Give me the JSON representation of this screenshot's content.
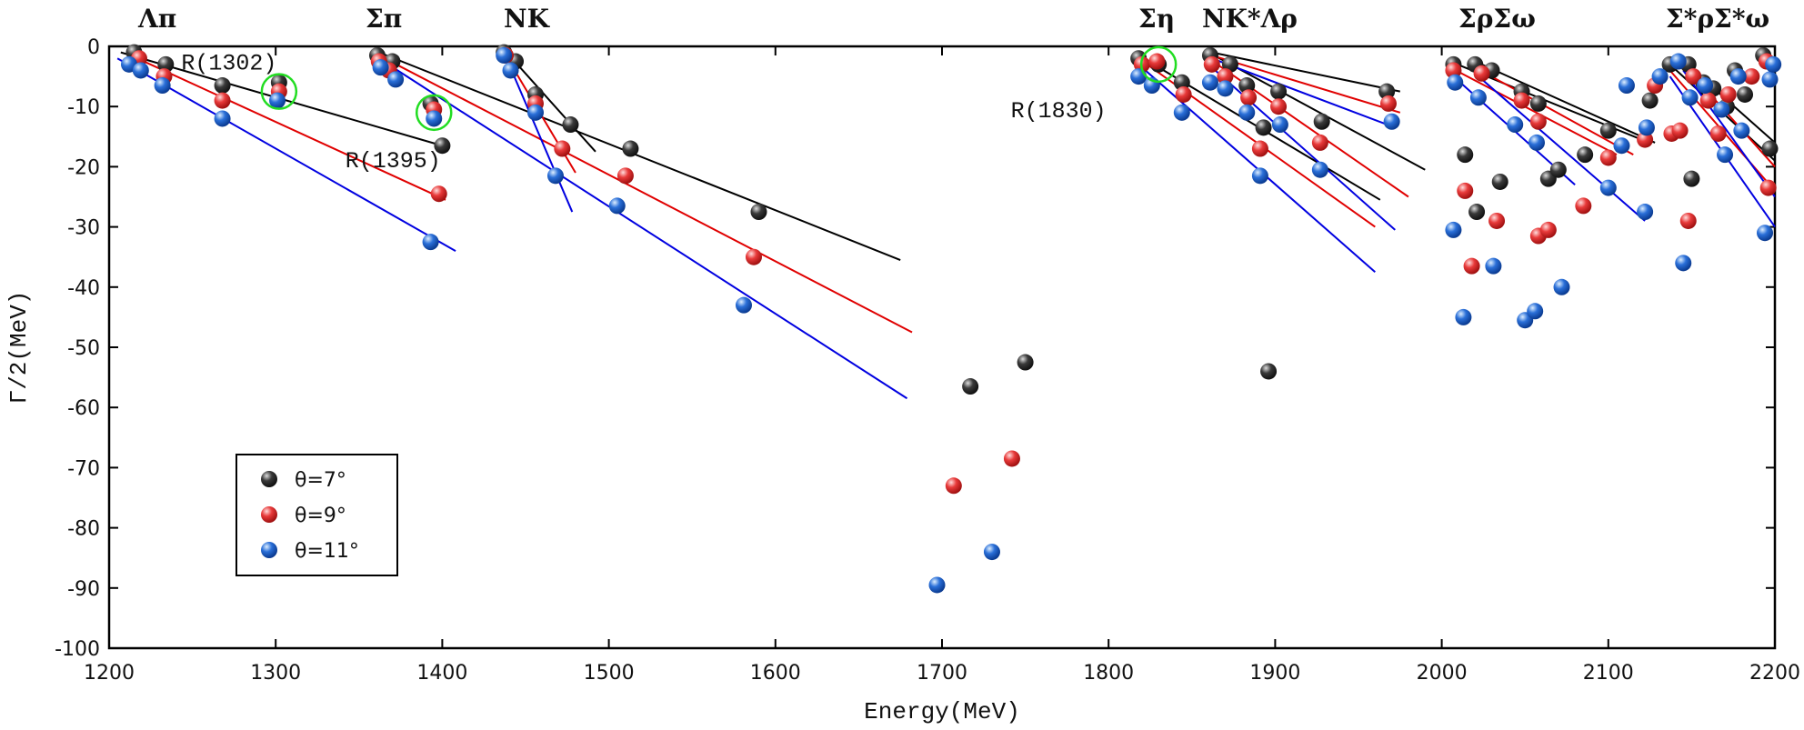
{
  "chart_data": {
    "type": "scatter",
    "xlabel": "Energy(MeV)",
    "ylabel": "Γ/2(MeV)",
    "xlim": [
      1200,
      2200
    ],
    "xticks": [
      1200,
      1300,
      1400,
      1500,
      1600,
      1700,
      1800,
      1900,
      2000,
      2100,
      2200
    ],
    "ylim": [
      -100,
      0
    ],
    "yticks": [
      -100,
      -90,
      -80,
      -70,
      -60,
      -50,
      -40,
      -30,
      -20,
      -10,
      0
    ],
    "legend": "lower left",
    "series": [
      {
        "name": "θ=7°",
        "color": "#3a3a3a",
        "line_color": "#000000",
        "x": [
          1215,
          1234,
          1268,
          1302,
          1361,
          1370,
          1393,
          1400,
          1437,
          1444,
          1456,
          1477,
          1513,
          1590,
          1717,
          1750,
          1818,
          1830,
          1844,
          1861,
          1873,
          1883,
          1893,
          1902,
          1896,
          1928,
          1967,
          2007,
          2014,
          2020,
          2021,
          2030,
          2035,
          2048,
          2058,
          2064,
          2070,
          2086,
          2100,
          2125,
          2137,
          2148,
          2150,
          2157,
          2163,
          2171,
          2176,
          2182,
          2193,
          2197
        ],
        "values": [
          -1,
          -3,
          -6.5,
          -6,
          -1.5,
          -2.5,
          -9.5,
          -16.5,
          -1,
          -2.5,
          -8,
          -13,
          -17,
          -27.5,
          -56.5,
          -52.5,
          -2,
          -3,
          -6,
          -1.5,
          -3,
          -6.5,
          -13.5,
          -7.5,
          -54,
          -12.5,
          -7.5,
          -3,
          -18,
          -3,
          -27.5,
          -4,
          -22.5,
          -7.5,
          -9.5,
          -22,
          -20.5,
          -18,
          -14,
          -9,
          -3,
          -3,
          -22,
          -6,
          -7,
          -10,
          -4,
          -8,
          -1.5,
          -17
        ],
        "lines": [
          {
            "x": [
              1207,
              1400
            ],
            "y": [
              -1,
              -16.5
            ]
          },
          {
            "x": [
              1362,
              1675
            ],
            "y": [
              -1,
              -35.5
            ]
          },
          {
            "x": [
              1437,
              1492
            ],
            "y": [
              -0.5,
              -17.5
            ]
          },
          {
            "x": [
              1818,
              1963
            ],
            "y": [
              -1.5,
              -25.5
            ]
          },
          {
            "x": [
              1860,
              1990
            ],
            "y": [
              -1,
              -20.5
            ]
          },
          {
            "x": [
              1862,
              1975
            ],
            "y": [
              -1,
              -7.5
            ]
          },
          {
            "x": [
              2005,
              2120
            ],
            "y": [
              -2.5,
              -15.5
            ]
          },
          {
            "x": [
              2020,
              2128
            ],
            "y": [
              -2.5,
              -16
            ]
          },
          {
            "x": [
              2137,
              2200
            ],
            "y": [
              -3,
              -19
            ]
          },
          {
            "x": [
              2145,
              2200
            ],
            "y": [
              -2.5,
              -16
            ]
          }
        ]
      },
      {
        "name": "θ=9°",
        "color": "#e83a3a",
        "line_color": "#e00000",
        "x": [
          1218,
          1233,
          1268,
          1302,
          1362,
          1368,
          1395,
          1398,
          1438,
          1456,
          1472,
          1510,
          1587,
          1707,
          1742,
          1820,
          1829,
          1845,
          1862,
          1870,
          1884,
          1891,
          1902,
          1927,
          1968,
          2007,
          2014,
          2018,
          2024,
          2033,
          2048,
          2058,
          2058,
          2064,
          2085,
          2100,
          2122,
          2128,
          2138,
          2143,
          2148,
          2151,
          2160,
          2166,
          2172,
          2196,
          2195,
          2186
        ],
        "values": [
          -2,
          -5,
          -9,
          -7.5,
          -2.5,
          -4,
          -10.5,
          -24.5,
          -1.5,
          -9.5,
          -17,
          -21.5,
          -35,
          -73,
          -68.5,
          -3,
          -2.5,
          -8,
          -3,
          -5,
          -8.5,
          -17,
          -10,
          -16,
          -9.5,
          -4,
          -24,
          -36.5,
          -4.5,
          -29,
          -9,
          -12.5,
          -31.5,
          -30.5,
          -26.5,
          -18.5,
          -15.5,
          -6.5,
          -14.5,
          -14,
          -29,
          -5,
          -9,
          -14.5,
          -8,
          -23.5,
          -2.5,
          -5
        ],
        "lines": [
          {
            "x": [
              1213,
              1402
            ],
            "y": [
              -1.5,
              -25.5
            ]
          },
          {
            "x": [
              1362,
              1682
            ],
            "y": [
              -1.5,
              -47.5
            ]
          },
          {
            "x": [
              1437,
              1480
            ],
            "y": [
              -1,
              -21
            ]
          },
          {
            "x": [
              1818,
              1960
            ],
            "y": [
              -2,
              -30
            ]
          },
          {
            "x": [
              1860,
              1980
            ],
            "y": [
              -2,
              -25
            ]
          },
          {
            "x": [
              1862,
              1975
            ],
            "y": [
              -1.5,
              -11
            ]
          },
          {
            "x": [
              2005,
              2105
            ],
            "y": [
              -3.5,
              -18
            ]
          },
          {
            "x": [
              2020,
              2115
            ],
            "y": [
              -3.5,
              -18
            ]
          },
          {
            "x": [
              2137,
              2200
            ],
            "y": [
              -4,
              -24
            ]
          },
          {
            "x": [
              2145,
              2200
            ],
            "y": [
              -3,
              -20
            ]
          }
        ]
      },
      {
        "name": "θ=11°",
        "color": "#2a6fd8",
        "line_color": "#0000e0",
        "x": [
          1212,
          1219,
          1232,
          1268,
          1301,
          1363,
          1372,
          1395,
          1393,
          1437,
          1441,
          1456,
          1468,
          1505,
          1581,
          1697,
          1730,
          1818,
          1826,
          1844,
          1861,
          1870,
          1883,
          1891,
          1903,
          1927,
          1970,
          2008,
          2007,
          2013,
          2022,
          2031,
          2044,
          2050,
          2057,
          2056,
          2072,
          2100,
          2108,
          2111,
          2122,
          2123,
          2131,
          2142,
          2145,
          2149,
          2158,
          2168,
          2170,
          2178,
          2180,
          2194,
          2197,
          2199
        ],
        "values": [
          -3,
          -4,
          -6.5,
          -12,
          -9,
          -3.5,
          -5.5,
          -12,
          -32.5,
          -1.5,
          -4,
          -11,
          -21.5,
          -26.5,
          -43,
          -89.5,
          -84,
          -5,
          -6.5,
          -11,
          -6,
          -7,
          -11,
          -21.5,
          -13,
          -20.5,
          -12.5,
          -6,
          -30.5,
          -45,
          -8.5,
          -36.5,
          -13,
          -45.5,
          -16,
          -44,
          -40,
          -23.5,
          -16.5,
          -6.5,
          -27.5,
          -13.5,
          -5,
          -2.5,
          -36,
          -8.5,
          -6.5,
          -10.5,
          -18,
          -5,
          -14,
          -31,
          -5.5,
          -3
        ],
        "lines": [
          {
            "x": [
              1205,
              1408
            ],
            "y": [
              -2,
              -34
            ]
          },
          {
            "x": [
              1362,
              1679
            ],
            "y": [
              -2,
              -58.5
            ]
          },
          {
            "x": [
              1437,
              1478
            ],
            "y": [
              -1,
              -27.5
            ]
          },
          {
            "x": [
              1818,
              1960
            ],
            "y": [
              -3,
              -37.5
            ]
          },
          {
            "x": [
              1860,
              1972
            ],
            "y": [
              -3,
              -30.5
            ]
          },
          {
            "x": [
              1862,
              1972
            ],
            "y": [
              -2,
              -13.5
            ]
          },
          {
            "x": [
              2005,
              2080
            ],
            "y": [
              -4.5,
              -23
            ]
          },
          {
            "x": [
              2020,
              2122
            ],
            "y": [
              -4.5,
              -29
            ]
          },
          {
            "x": [
              2137,
              2200
            ],
            "y": [
              -5,
              -30
            ]
          },
          {
            "x": [
              2145,
              2200
            ],
            "y": [
              -4,
              -25
            ]
          }
        ]
      }
    ],
    "thresholds": [
      "Λπ",
      "Σπ",
      "NK",
      "Ση",
      "NK*Λρ",
      "ΣρΣω",
      "Σ*ρΣ*ω"
    ],
    "resonances": [
      {
        "label": "R(1302)",
        "x": 1302,
        "y": -7.5
      },
      {
        "label": "R(1395)",
        "x": 1395,
        "y": -11
      },
      {
        "label": "R(1830)",
        "x": 1830,
        "y": -3
      }
    ]
  }
}
